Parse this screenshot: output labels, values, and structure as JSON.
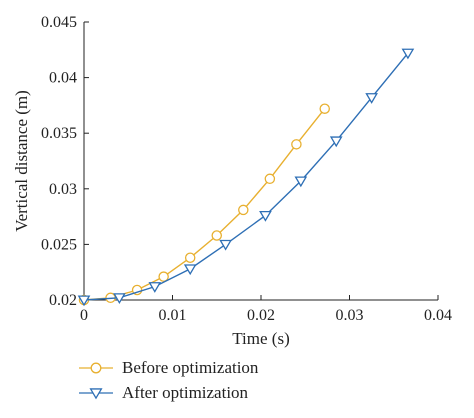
{
  "chart_data": {
    "type": "line",
    "xlabel": "Time (s)",
    "ylabel": "Vertical distance (m)",
    "xlim": [
      0,
      0.04
    ],
    "ylim": [
      0.02,
      0.045
    ],
    "x_ticks": [
      "0",
      "0.01",
      "0.02",
      "0.03",
      "0.04"
    ],
    "y_ticks": [
      "0.02",
      "0.025",
      "0.03",
      "0.035",
      "0.04",
      "0.045"
    ],
    "grid": false,
    "legend_position": "bottom",
    "series": [
      {
        "name": "Before optimization",
        "color": "#E8B030",
        "marker": "circle",
        "x": [
          0.0,
          0.003,
          0.006,
          0.009,
          0.012,
          0.015,
          0.018,
          0.021,
          0.024,
          0.0272
        ],
        "y": [
          0.02,
          0.0202,
          0.0209,
          0.0221,
          0.0238,
          0.0258,
          0.0281,
          0.0309,
          0.034,
          0.0372
        ]
      },
      {
        "name": "After optimization",
        "color": "#2E6FB5",
        "marker": "triangle-down",
        "x": [
          0.0,
          0.004,
          0.008,
          0.012,
          0.016,
          0.0205,
          0.0245,
          0.0285,
          0.0325,
          0.0366
        ],
        "y": [
          0.02,
          0.0202,
          0.0212,
          0.0228,
          0.025,
          0.0276,
          0.0307,
          0.0343,
          0.0382,
          0.0422
        ]
      }
    ]
  }
}
